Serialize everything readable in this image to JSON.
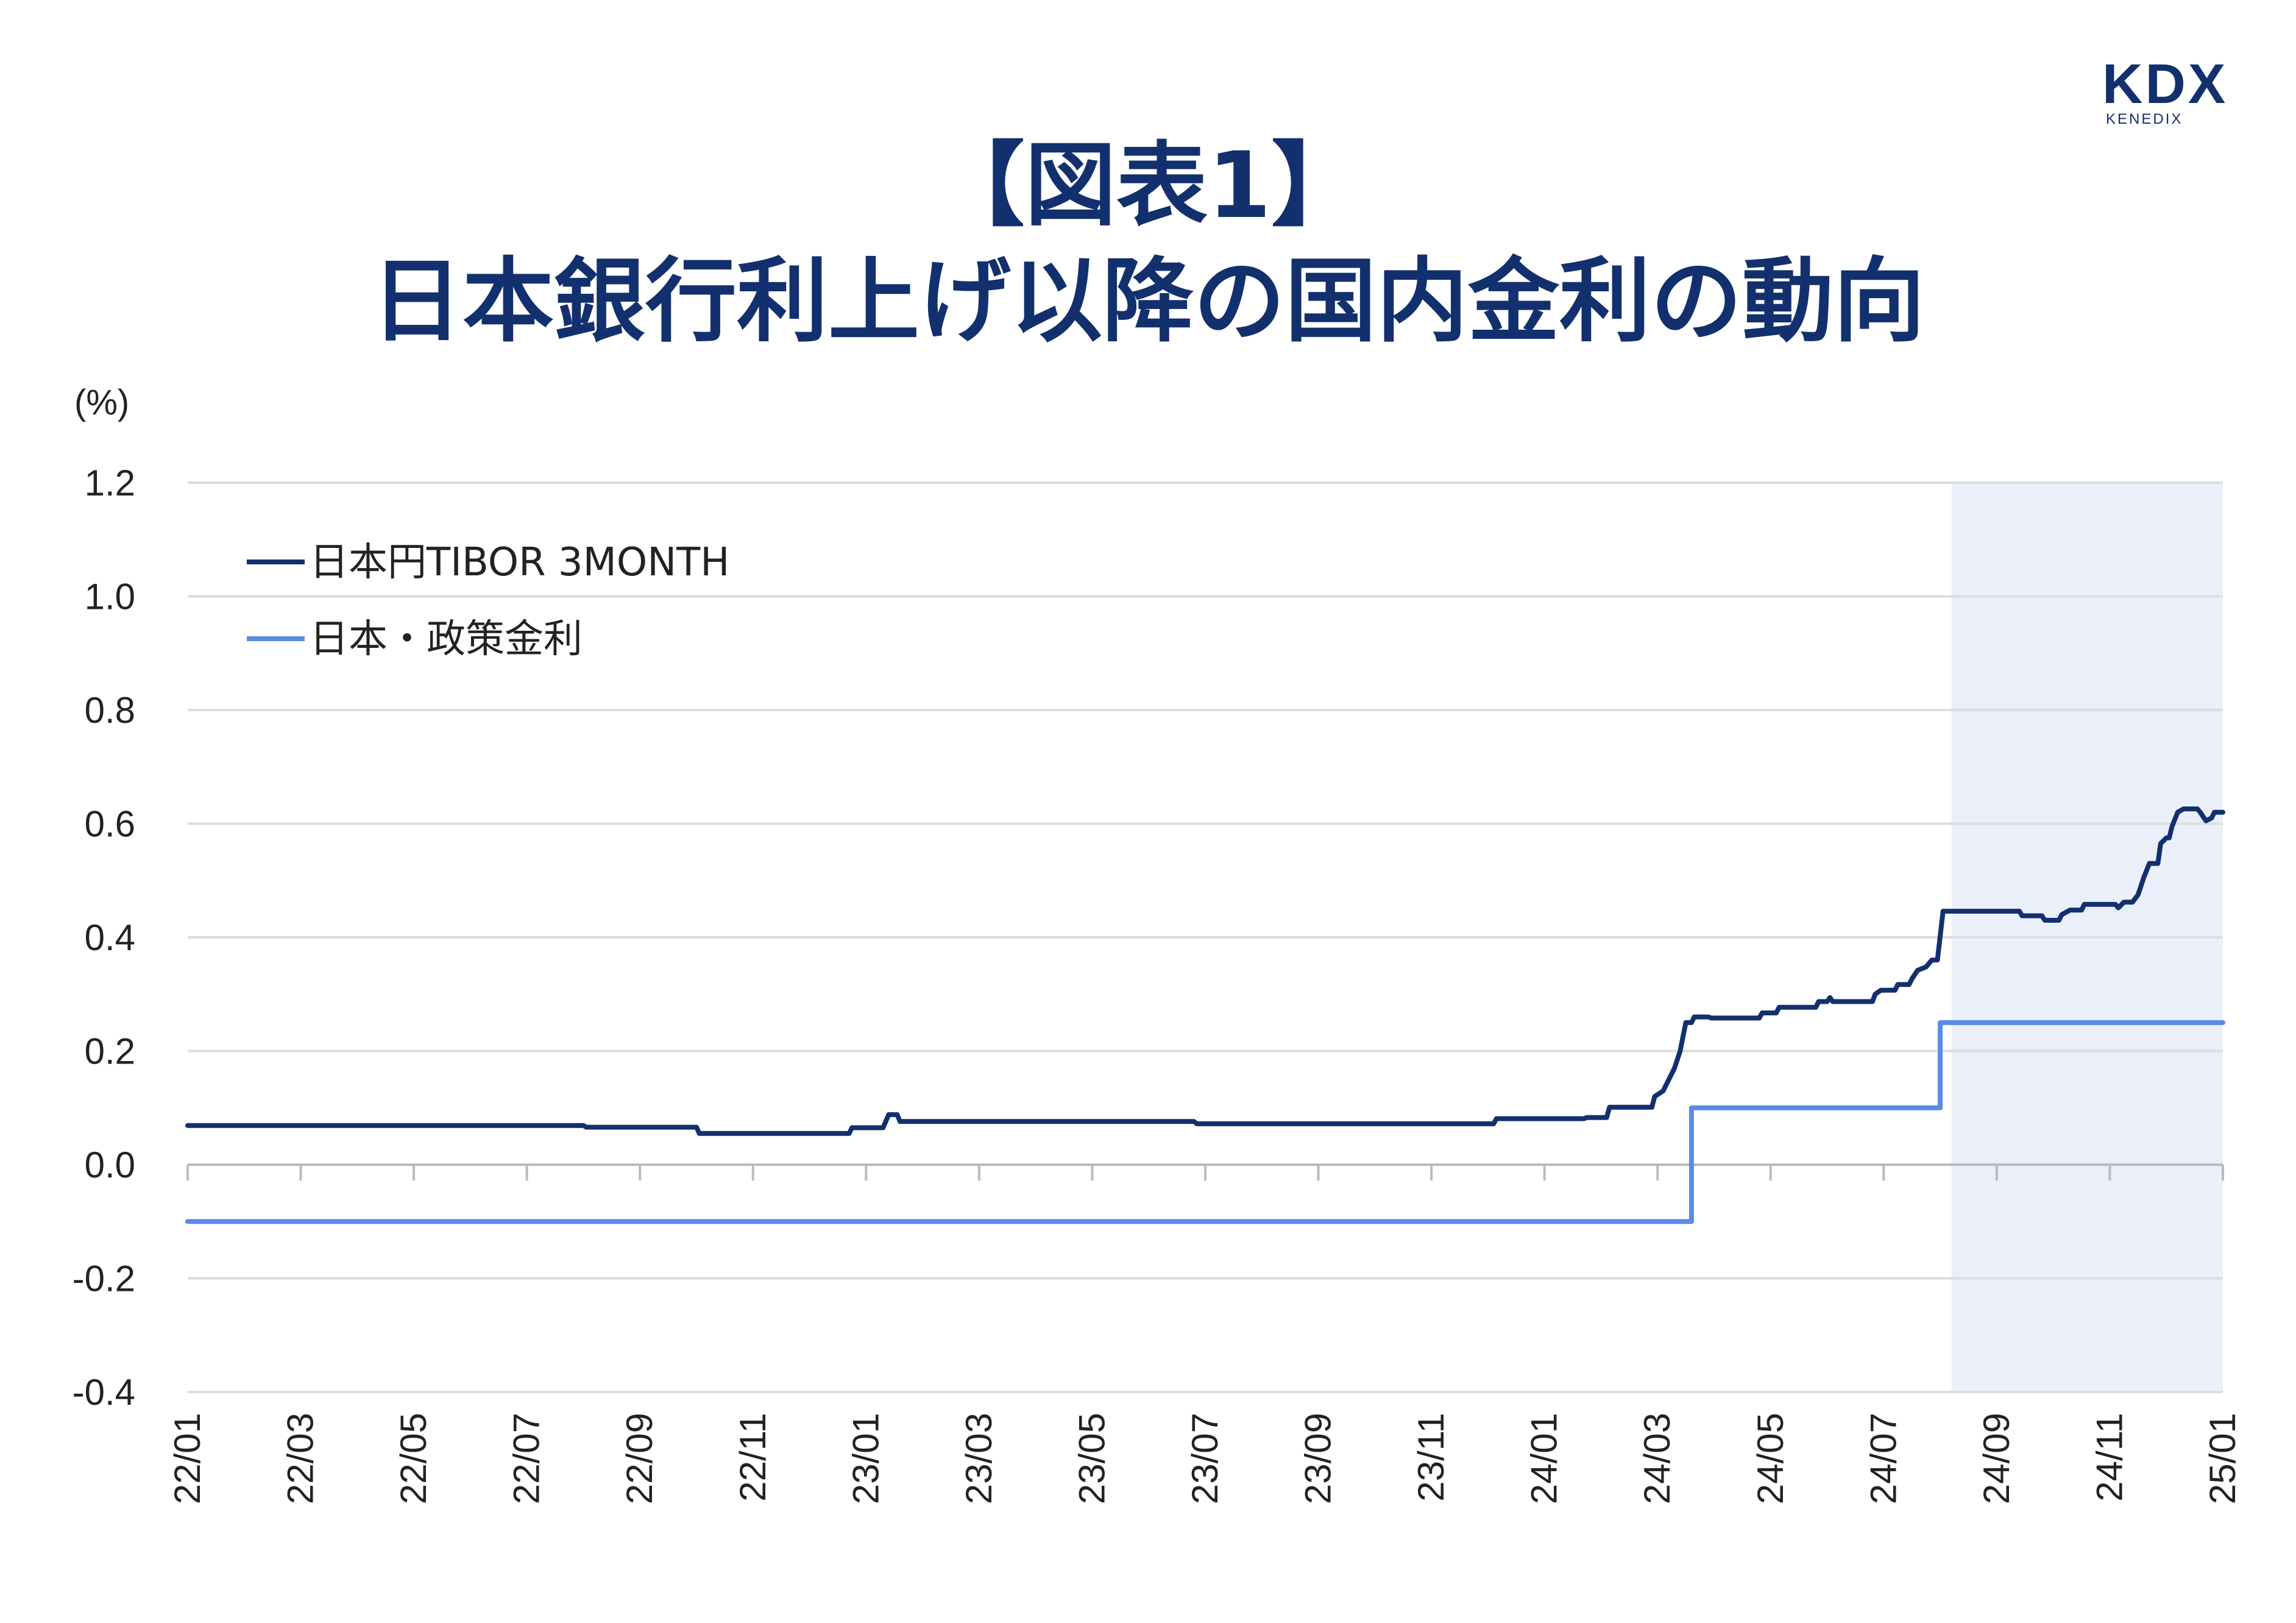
{
  "header": {
    "title_line1": "【図表1】",
    "title_line2": "日本銀行利上げ以降の国内金利の動向"
  },
  "logo": {
    "mark": "KDX",
    "sub": "KENEDIX"
  },
  "chart_data": {
    "type": "line",
    "unit_label": "(%)",
    "ylim": [
      -0.4,
      1.2
    ],
    "yticks": [
      "1.2",
      "1.0",
      "0.8",
      "0.6",
      "0.4",
      "0.2",
      "0.0",
      "-0.2",
      "-0.4"
    ],
    "ytick_values": [
      1.2,
      1.0,
      0.8,
      0.6,
      0.4,
      0.2,
      0.0,
      -0.2,
      -0.4
    ],
    "xlim": [
      0,
      36
    ],
    "xticks": [
      "22/01",
      "22/03",
      "22/05",
      "22/07",
      "22/09",
      "22/11",
      "23/01",
      "23/03",
      "23/05",
      "23/07",
      "23/09",
      "23/11",
      "24/01",
      "24/03",
      "24/05",
      "24/07",
      "24/09",
      "24/11",
      "25/01"
    ],
    "xtick_values": [
      0,
      2,
      4,
      6,
      8,
      10,
      12,
      14,
      16,
      18,
      20,
      22,
      24,
      26,
      28,
      30,
      32,
      34,
      36
    ],
    "grid": true,
    "legend": "top-left",
    "shaded_region": {
      "from": 31.2,
      "to": 36,
      "color": "#eaeffa"
    },
    "colors": {
      "tibor": "#13306e",
      "policy": "#5a8ce6",
      "grid": "#dddddd",
      "axis": "#bbbbbb"
    },
    "series": [
      {
        "name": "日本円TIBOR 3MONTH",
        "color": "#13306e",
        "points": [
          [
            0,
            0.069
          ],
          [
            7,
            0.069
          ],
          [
            7.05,
            0.066
          ],
          [
            9,
            0.066
          ],
          [
            9.05,
            0.055
          ],
          [
            11.7,
            0.055
          ],
          [
            11.75,
            0.065
          ],
          [
            12.3,
            0.065
          ],
          [
            12.4,
            0.088
          ],
          [
            12.55,
            0.088
          ],
          [
            12.6,
            0.076
          ],
          [
            17.8,
            0.076
          ],
          [
            17.85,
            0.072
          ],
          [
            23.1,
            0.072
          ],
          [
            23.15,
            0.081
          ],
          [
            24.7,
            0.081
          ],
          [
            24.75,
            0.083
          ],
          [
            25.1,
            0.083
          ],
          [
            25.15,
            0.101
          ],
          [
            25.9,
            0.101
          ],
          [
            25.95,
            0.12
          ],
          [
            26.1,
            0.13
          ],
          [
            26.2,
            0.15
          ],
          [
            26.3,
            0.17
          ],
          [
            26.4,
            0.2
          ],
          [
            26.5,
            0.25
          ],
          [
            26.6,
            0.25
          ],
          [
            26.65,
            0.26
          ],
          [
            26.9,
            0.26
          ],
          [
            26.95,
            0.258
          ],
          [
            27.8,
            0.258
          ],
          [
            27.85,
            0.267
          ],
          [
            28.1,
            0.267
          ],
          [
            28.15,
            0.277
          ],
          [
            28.8,
            0.277
          ],
          [
            28.85,
            0.287
          ],
          [
            29.0,
            0.287
          ],
          [
            29.05,
            0.294
          ],
          [
            29.1,
            0.287
          ],
          [
            29.8,
            0.287
          ],
          [
            29.85,
            0.3
          ],
          [
            29.95,
            0.307
          ],
          [
            30.2,
            0.307
          ],
          [
            30.25,
            0.317
          ],
          [
            30.45,
            0.317
          ],
          [
            30.5,
            0.327
          ],
          [
            30.6,
            0.342
          ],
          [
            30.75,
            0.348
          ],
          [
            30.85,
            0.36
          ],
          [
            30.95,
            0.36
          ],
          [
            31.05,
            0.446
          ],
          [
            32.4,
            0.446
          ],
          [
            32.45,
            0.438
          ],
          [
            32.8,
            0.438
          ],
          [
            32.85,
            0.43
          ],
          [
            33.1,
            0.43
          ],
          [
            33.15,
            0.44
          ],
          [
            33.3,
            0.448
          ],
          [
            33.5,
            0.448
          ],
          [
            33.55,
            0.458
          ],
          [
            34.1,
            0.458
          ],
          [
            34.15,
            0.452
          ],
          [
            34.25,
            0.462
          ],
          [
            34.4,
            0.462
          ],
          [
            34.5,
            0.475
          ],
          [
            34.6,
            0.505
          ],
          [
            34.7,
            0.53
          ],
          [
            34.85,
            0.53
          ],
          [
            34.9,
            0.565
          ],
          [
            35.0,
            0.575
          ],
          [
            35.05,
            0.575
          ],
          [
            35.1,
            0.595
          ],
          [
            35.2,
            0.62
          ],
          [
            35.3,
            0.626
          ],
          [
            35.55,
            0.626
          ],
          [
            35.6,
            0.62
          ],
          [
            35.7,
            0.605
          ],
          [
            35.8,
            0.61
          ],
          [
            35.85,
            0.62
          ],
          [
            36.0,
            0.62
          ]
        ]
      },
      {
        "name": "日本・政策金利",
        "color": "#5a8ce6",
        "points": [
          [
            0,
            -0.1
          ],
          [
            26.6,
            -0.1
          ],
          [
            26.6,
            0.1
          ],
          [
            31.0,
            0.1
          ],
          [
            31.0,
            0.25
          ],
          [
            36.0,
            0.25
          ]
        ]
      }
    ]
  }
}
